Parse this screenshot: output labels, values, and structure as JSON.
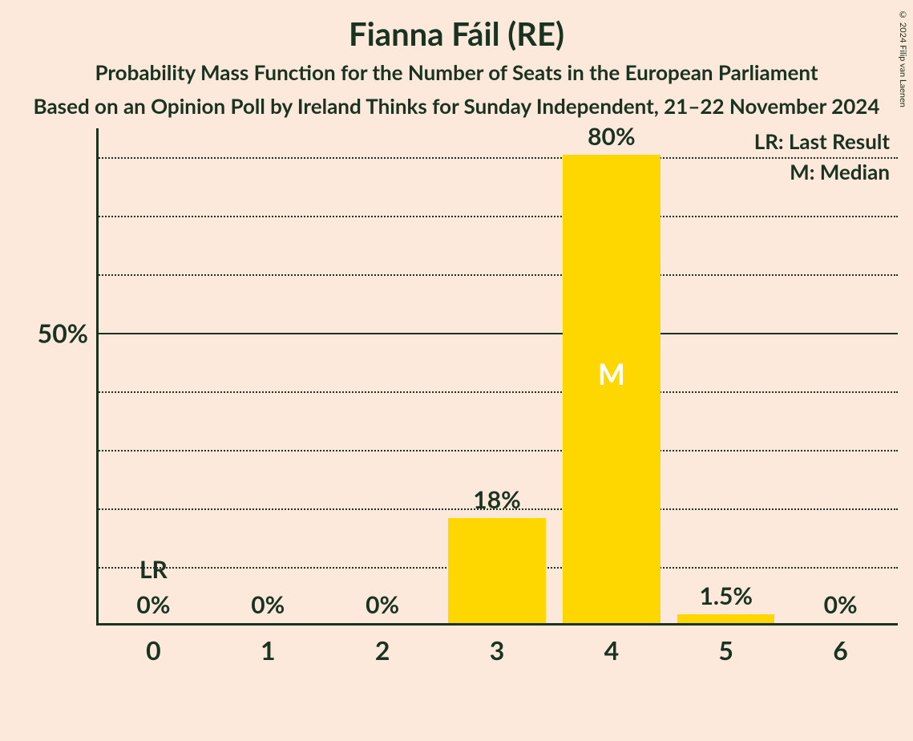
{
  "title": "Fianna Fáil (RE)",
  "subtitle": "Probability Mass Function for the Number of Seats in the European Parliament",
  "subtitle2": "Based on an Opinion Poll by Ireland Thinks for Sunday Independent, 21–22 November 2024",
  "copyright": "© 2024 Filip van Laenen",
  "legend": {
    "lr": "LR: Last Result",
    "m": "M: Median"
  },
  "chart": {
    "type": "bar",
    "background_color": "#fce9dc",
    "text_color": "#1a3320",
    "bar_color": "#ffd700",
    "grid_color": "#1a3320",
    "title_fontsize": 40,
    "subtitle_fontsize": 26,
    "axis_fontsize": 32,
    "barlabel_fontsize": 30,
    "legend_fontsize": 26,
    "marker_fontsize": 36,
    "y_max": 85,
    "y_label_at": 50,
    "y_label_text": "50%",
    "grid_step": 10,
    "bar_width_ratio": 0.85,
    "categories": [
      "0",
      "1",
      "2",
      "3",
      "4",
      "5",
      "6"
    ],
    "values": [
      0,
      0,
      0,
      18,
      80,
      1.5,
      0
    ],
    "value_labels": [
      "0%",
      "0%",
      "0%",
      "18%",
      "80%",
      "1.5%",
      "0%"
    ],
    "lr_index": 0,
    "lr_text": "LR",
    "median_index": 4,
    "median_text": "M"
  }
}
